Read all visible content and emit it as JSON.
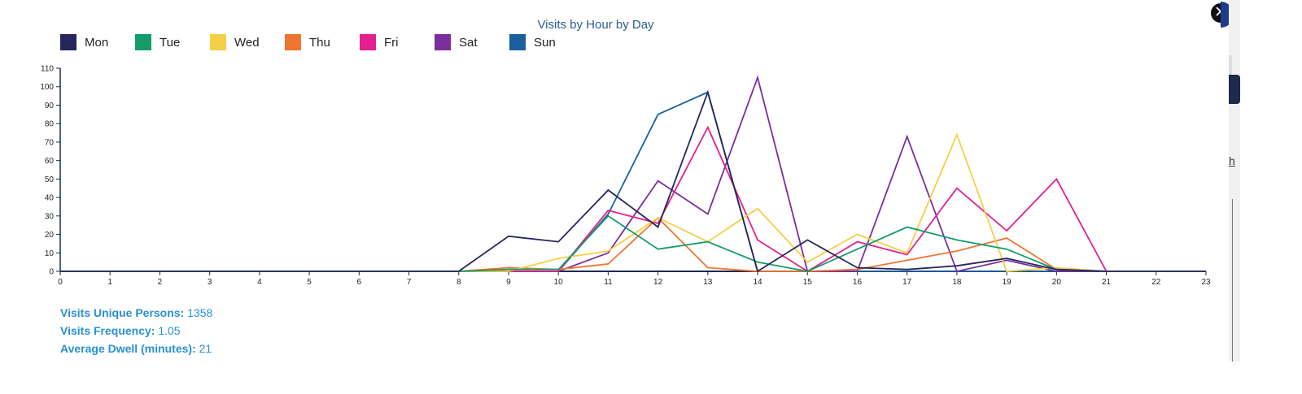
{
  "chart_data": {
    "type": "line",
    "title": "Visits by Hour by Day",
    "x": [
      0,
      1,
      2,
      3,
      4,
      5,
      6,
      7,
      8,
      9,
      10,
      11,
      12,
      13,
      14,
      15,
      16,
      17,
      18,
      19,
      20,
      21,
      22,
      23
    ],
    "xlim": [
      0,
      23
    ],
    "ylim": [
      0,
      110
    ],
    "y_ticks": [
      0,
      10,
      20,
      30,
      40,
      50,
      60,
      70,
      80,
      90,
      100,
      110
    ],
    "grid": false,
    "legend": "top-left",
    "series": [
      {
        "name": "Mon",
        "color": "#26265c",
        "values": [
          0,
          0,
          0,
          0,
          0,
          0,
          0,
          0,
          0,
          19,
          16,
          44,
          24,
          97,
          0,
          17,
          2,
          1,
          3,
          7,
          1,
          0,
          0,
          0
        ]
      },
      {
        "name": "Tue",
        "color": "#149c6b",
        "values": [
          0,
          0,
          0,
          0,
          0,
          0,
          0,
          0,
          0,
          1,
          1,
          30,
          12,
          16,
          5,
          0,
          12,
          24,
          17,
          12,
          1,
          0,
          0,
          0
        ]
      },
      {
        "name": "Wed",
        "color": "#f5cf47",
        "values": [
          0,
          0,
          0,
          0,
          0,
          0,
          0,
          0,
          0,
          0,
          7,
          11,
          29,
          16,
          34,
          5,
          20,
          10,
          74,
          0,
          2,
          0,
          0,
          0
        ]
      },
      {
        "name": "Thu",
        "color": "#f07630",
        "values": [
          0,
          0,
          0,
          0,
          0,
          0,
          0,
          0,
          0,
          2,
          1,
          4,
          29,
          2,
          0,
          0,
          1,
          6,
          11,
          18,
          1,
          0,
          0,
          0
        ]
      },
      {
        "name": "Fri",
        "color": "#e3208f",
        "values": [
          0,
          0,
          0,
          0,
          0,
          0,
          0,
          0,
          0,
          0,
          0,
          33,
          26,
          78,
          17,
          0,
          16,
          9,
          45,
          22,
          50,
          0,
          0,
          0
        ]
      },
      {
        "name": "Sat",
        "color": "#7b2e9e",
        "values": [
          0,
          0,
          0,
          0,
          0,
          0,
          0,
          0,
          0,
          0,
          0,
          10,
          49,
          31,
          105,
          0,
          0,
          73,
          0,
          6,
          0,
          0,
          0,
          0
        ]
      },
      {
        "name": "Sun",
        "color": "#1a5f9e",
        "values": [
          0,
          0,
          0,
          0,
          0,
          0,
          0,
          0,
          0,
          0,
          0,
          31,
          85,
          97,
          0,
          0,
          0,
          0,
          0,
          0,
          0,
          0,
          0,
          0
        ]
      }
    ]
  },
  "stats": [
    {
      "label": "Visits Unique Persons:",
      "value": "1358"
    },
    {
      "label": "Visits Frequency:",
      "value": "1.05"
    },
    {
      "label": "Average Dwell (minutes):",
      "value": "21"
    }
  ],
  "close": {
    "label": "✕"
  },
  "side": {
    "link_text": "h"
  }
}
